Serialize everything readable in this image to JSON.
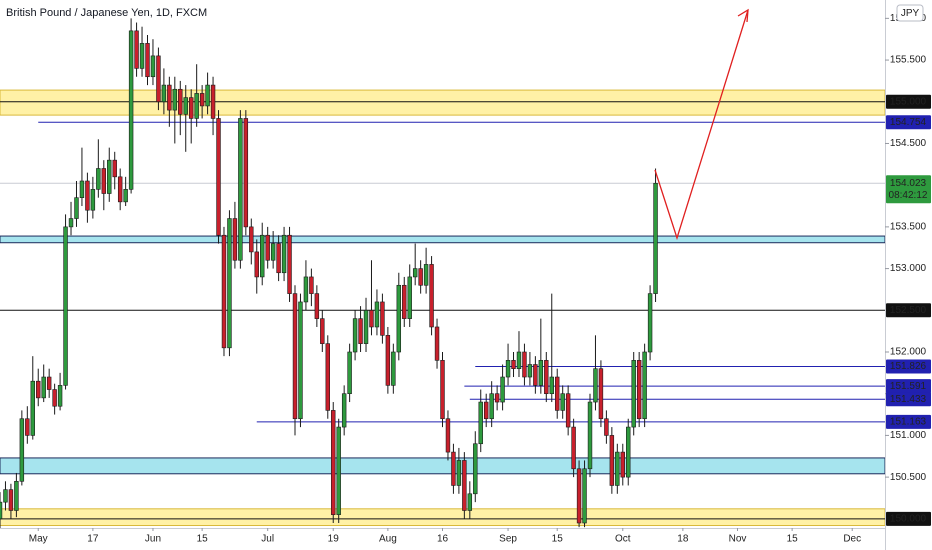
{
  "chart_data": {
    "type": "candlestick",
    "title": "British Pound / Japanese Yen, 1D, FXCM",
    "currency": "JPY",
    "up_color": "#2e9a3e",
    "down_color": "#c8202c",
    "xlim": [
      -7,
      155
    ],
    "ylim": [
      149.89,
      156.22
    ],
    "xticks": [
      {
        "value": 0,
        "label": "May"
      },
      {
        "value": 10,
        "label": "17"
      },
      {
        "value": 21,
        "label": "Jun"
      },
      {
        "value": 30,
        "label": "15"
      },
      {
        "value": 42,
        "label": "Jul"
      },
      {
        "value": 54,
        "label": "19"
      },
      {
        "value": 64,
        "label": "Aug"
      },
      {
        "value": 74,
        "label": "16"
      },
      {
        "value": 86,
        "label": "Sep"
      },
      {
        "value": 95,
        "label": "15"
      },
      {
        "value": 107,
        "label": "Oct"
      },
      {
        "value": 118,
        "label": "18"
      },
      {
        "value": 128,
        "label": "Nov"
      },
      {
        "value": 138,
        "label": "15"
      },
      {
        "value": 149,
        "label": "Dec"
      }
    ],
    "yticks": [
      {
        "value": 150.5,
        "label": "150.500"
      },
      {
        "value": 151,
        "label": "151.000"
      },
      {
        "value": 151.5,
        "label": "151.500"
      },
      {
        "value": 152,
        "label": "152.000"
      },
      {
        "value": 153,
        "label": "153.000"
      },
      {
        "value": 153.5,
        "label": "153.500"
      },
      {
        "value": 154.5,
        "label": "154.500"
      },
      {
        "value": 155.5,
        "label": "155.500"
      },
      {
        "value": 156,
        "label": "156.000"
      }
    ],
    "grid": false,
    "zones": [
      {
        "range": [
          154.84,
          155.14
        ],
        "color": "#fff1a6",
        "border": "#d9b93a"
      },
      {
        "range": [
          153.31,
          153.39
        ],
        "color": "#a6e4ee",
        "border": "#1c2a5a"
      },
      {
        "range": [
          150.54,
          150.73
        ],
        "color": "#a6e4ee",
        "border": "#1c2a5a"
      },
      {
        "range": [
          149.92,
          150.12
        ],
        "color": "#fff1a6",
        "border": "#d9b93a"
      }
    ],
    "levels": [
      {
        "value": 155.0,
        "label": "155.000",
        "color": "#111111",
        "start": -7
      },
      {
        "value": 154.754,
        "label": "154.754",
        "color": "#2121b0",
        "start": 0
      },
      {
        "value": 152.5,
        "label": "152.500",
        "color": "#111111",
        "start": -7
      },
      {
        "value": 151.826,
        "label": "151.826",
        "color": "#2121b0",
        "start": 80
      },
      {
        "value": 151.591,
        "label": "151.591",
        "color": "#2121b0",
        "start": 78
      },
      {
        "value": 151.433,
        "label": "151.433",
        "color": "#2121b0",
        "start": 79
      },
      {
        "value": 151.163,
        "label": "151.163",
        "color": "#2121b0",
        "start": 40
      },
      {
        "value": 150.0,
        "label": "150.000",
        "color": "#111111",
        "start": -7
      }
    ],
    "last_price": {
      "value": 154.023,
      "label": "154.023",
      "countdown": "08:42:12",
      "color": "#2e9a3e"
    },
    "x": [
      -7,
      -6,
      -5,
      -4,
      -3,
      -2,
      -1,
      0,
      1,
      2,
      3,
      4,
      5,
      6,
      7,
      8,
      9,
      10,
      11,
      12,
      13,
      14,
      15,
      16,
      17,
      18,
      19,
      20,
      21,
      22,
      23,
      24,
      25,
      26,
      27,
      28,
      29,
      30,
      31,
      32,
      33,
      34,
      35,
      36,
      37,
      38,
      39,
      40,
      41,
      42,
      43,
      44,
      45,
      46,
      47,
      48,
      49,
      50,
      51,
      52,
      53,
      54,
      55,
      56,
      57,
      58,
      59,
      60,
      61,
      62,
      63,
      64,
      65,
      66,
      67,
      68,
      69,
      70,
      71,
      72,
      73,
      74,
      75,
      76,
      77,
      78,
      79,
      80,
      81,
      82,
      83,
      84,
      85,
      86,
      87,
      88,
      89,
      90,
      91,
      92,
      93,
      94,
      95,
      96,
      97,
      98,
      99,
      100,
      101,
      102,
      103,
      104,
      105,
      106,
      107,
      108,
      109,
      110,
      111,
      112,
      113
    ],
    "candles": [
      [
        150.0,
        150.32,
        149.88,
        150.2
      ],
      [
        150.2,
        150.45,
        150.1,
        150.35
      ],
      [
        150.35,
        150.42,
        150.0,
        150.1
      ],
      [
        150.1,
        150.55,
        150.02,
        150.45
      ],
      [
        150.45,
        151.3,
        150.4,
        151.2
      ],
      [
        151.2,
        151.35,
        150.9,
        151.0
      ],
      [
        151.0,
        151.95,
        150.95,
        151.65
      ],
      [
        151.65,
        151.8,
        151.35,
        151.45
      ],
      [
        151.45,
        151.85,
        151.4,
        151.7
      ],
      [
        151.7,
        151.8,
        151.45,
        151.55
      ],
      [
        151.55,
        151.62,
        151.25,
        151.35
      ],
      [
        151.35,
        151.75,
        151.3,
        151.6
      ],
      [
        151.6,
        153.65,
        151.55,
        153.5
      ],
      [
        153.5,
        153.8,
        153.4,
        153.6
      ],
      [
        153.6,
        154.05,
        153.5,
        153.85
      ],
      [
        153.85,
        154.45,
        153.75,
        154.05
      ],
      [
        154.05,
        154.15,
        153.55,
        153.7
      ],
      [
        153.7,
        154.1,
        153.6,
        153.95
      ],
      [
        153.95,
        154.55,
        153.85,
        154.2
      ],
      [
        154.2,
        154.3,
        153.7,
        153.9
      ],
      [
        153.9,
        154.45,
        153.8,
        154.3
      ],
      [
        154.3,
        154.4,
        153.95,
        154.1
      ],
      [
        154.1,
        154.2,
        153.7,
        153.8
      ],
      [
        153.8,
        154.1,
        153.75,
        153.95
      ],
      [
        153.95,
        156.0,
        153.9,
        155.85
      ],
      [
        155.85,
        155.95,
        155.3,
        155.4
      ],
      [
        155.4,
        155.9,
        155.3,
        155.7
      ],
      [
        155.7,
        155.8,
        155.2,
        155.3
      ],
      [
        155.3,
        155.75,
        155.2,
        155.55
      ],
      [
        155.55,
        155.65,
        154.9,
        155.0
      ],
      [
        155.0,
        155.4,
        154.85,
        155.2
      ],
      [
        155.2,
        155.3,
        154.7,
        154.9
      ],
      [
        154.9,
        155.3,
        154.5,
        155.15
      ],
      [
        155.15,
        155.25,
        154.6,
        154.85
      ],
      [
        154.85,
        155.2,
        154.4,
        155.05
      ],
      [
        155.05,
        155.15,
        154.5,
        154.8
      ],
      [
        154.8,
        155.45,
        154.7,
        155.1
      ],
      [
        155.1,
        155.2,
        154.8,
        154.95
      ],
      [
        154.95,
        155.35,
        154.85,
        155.2
      ],
      [
        155.2,
        155.3,
        154.6,
        154.8
      ],
      [
        154.8,
        154.9,
        153.3,
        153.4
      ],
      [
        153.4,
        153.5,
        151.95,
        152.05
      ],
      [
        152.05,
        153.7,
        151.95,
        153.6
      ],
      [
        153.6,
        153.8,
        153.0,
        153.1
      ],
      [
        153.1,
        154.9,
        153.0,
        154.8
      ],
      [
        154.8,
        154.9,
        153.4,
        153.5
      ],
      [
        153.5,
        153.6,
        153.05,
        153.2
      ],
      [
        153.2,
        153.35,
        152.7,
        152.9
      ],
      [
        152.9,
        153.55,
        152.8,
        153.4
      ],
      [
        153.4,
        153.5,
        153.0,
        153.1
      ],
      [
        153.1,
        153.45,
        153.0,
        153.3
      ],
      [
        153.3,
        153.4,
        152.85,
        152.95
      ],
      [
        152.95,
        153.5,
        152.85,
        153.4
      ],
      [
        153.4,
        153.5,
        152.6,
        152.7
      ],
      [
        152.7,
        152.8,
        151.0,
        151.2
      ],
      [
        151.2,
        152.7,
        151.1,
        152.6
      ],
      [
        152.6,
        153.1,
        152.5,
        152.9
      ],
      [
        152.9,
        153.0,
        152.55,
        152.7
      ],
      [
        152.7,
        152.8,
        152.3,
        152.4
      ],
      [
        152.4,
        152.5,
        152.0,
        152.1
      ],
      [
        152.1,
        152.2,
        151.2,
        151.3
      ],
      [
        151.3,
        151.4,
        149.95,
        150.05
      ],
      [
        150.05,
        151.2,
        149.95,
        151.1
      ],
      [
        151.1,
        151.6,
        151.0,
        151.5
      ],
      [
        151.5,
        152.1,
        151.4,
        152.0
      ],
      [
        152.0,
        152.5,
        151.9,
        152.4
      ],
      [
        152.4,
        152.55,
        152.0,
        152.1
      ],
      [
        152.1,
        152.65,
        152.0,
        152.5
      ],
      [
        152.5,
        153.1,
        152.2,
        152.3
      ],
      [
        152.3,
        152.75,
        152.2,
        152.6
      ],
      [
        152.6,
        152.7,
        152.1,
        152.2
      ],
      [
        152.2,
        152.3,
        151.5,
        151.6
      ],
      [
        151.6,
        152.1,
        151.5,
        152.0
      ],
      [
        152.0,
        152.95,
        151.9,
        152.8
      ],
      [
        152.8,
        152.9,
        152.3,
        152.4
      ],
      [
        152.4,
        153.05,
        152.3,
        152.9
      ],
      [
        152.9,
        153.3,
        152.8,
        153.0
      ],
      [
        153.0,
        153.1,
        152.7,
        152.8
      ],
      [
        152.8,
        153.25,
        152.7,
        153.05
      ],
      [
        153.05,
        153.15,
        152.2,
        152.3
      ],
      [
        152.3,
        152.4,
        151.8,
        151.9
      ],
      [
        151.9,
        152.0,
        151.1,
        151.2
      ],
      [
        151.2,
        151.3,
        150.7,
        150.8
      ],
      [
        150.8,
        150.9,
        150.3,
        150.4
      ],
      [
        150.4,
        150.85,
        150.3,
        150.7
      ],
      [
        150.7,
        150.8,
        150.0,
        150.1
      ],
      [
        150.1,
        150.45,
        150.0,
        150.3
      ],
      [
        150.3,
        151.05,
        150.2,
        150.9
      ],
      [
        150.9,
        151.55,
        150.8,
        151.4
      ],
      [
        151.4,
        151.5,
        151.1,
        151.2
      ],
      [
        151.2,
        151.65,
        151.1,
        151.5
      ],
      [
        151.5,
        151.6,
        151.3,
        151.4
      ],
      [
        151.4,
        151.85,
        151.3,
        151.7
      ],
      [
        151.7,
        152.1,
        151.6,
        151.9
      ],
      [
        151.9,
        152.0,
        151.7,
        151.8
      ],
      [
        151.8,
        152.25,
        151.7,
        152.0
      ],
      [
        152.0,
        152.1,
        151.6,
        151.7
      ],
      [
        151.7,
        152.0,
        151.6,
        151.85
      ],
      [
        151.85,
        151.95,
        151.5,
        151.6
      ],
      [
        151.6,
        152.4,
        151.5,
        151.9
      ],
      [
        151.9,
        152.0,
        151.4,
        151.5
      ],
      [
        151.5,
        152.7,
        151.4,
        151.7
      ],
      [
        151.7,
        151.8,
        151.2,
        151.3
      ],
      [
        151.3,
        151.6,
        151.2,
        151.5
      ],
      [
        151.5,
        151.6,
        151.0,
        151.1
      ],
      [
        151.1,
        151.2,
        150.5,
        150.6
      ],
      [
        150.6,
        150.7,
        149.9,
        149.95
      ],
      [
        149.95,
        150.7,
        149.9,
        150.6
      ],
      [
        150.6,
        151.5,
        150.5,
        151.4
      ],
      [
        151.4,
        152.2,
        151.3,
        151.8
      ],
      [
        151.8,
        151.9,
        151.1,
        151.2
      ],
      [
        151.2,
        151.3,
        150.9,
        151.0
      ],
      [
        151.0,
        151.1,
        150.3,
        150.4
      ],
      [
        150.4,
        150.9,
        150.3,
        150.8
      ],
      [
        150.8,
        150.9,
        150.4,
        150.5
      ],
      [
        150.5,
        151.2,
        150.4,
        151.1
      ],
      [
        151.1,
        152.0,
        151.0,
        151.9
      ],
      [
        151.9,
        152.0,
        151.1,
        151.2
      ],
      [
        151.2,
        152.1,
        151.1,
        152.0
      ],
      [
        152.0,
        152.8,
        151.9,
        152.7
      ],
      [
        152.7,
        154.2,
        152.6,
        154.023
      ]
    ]
  }
}
